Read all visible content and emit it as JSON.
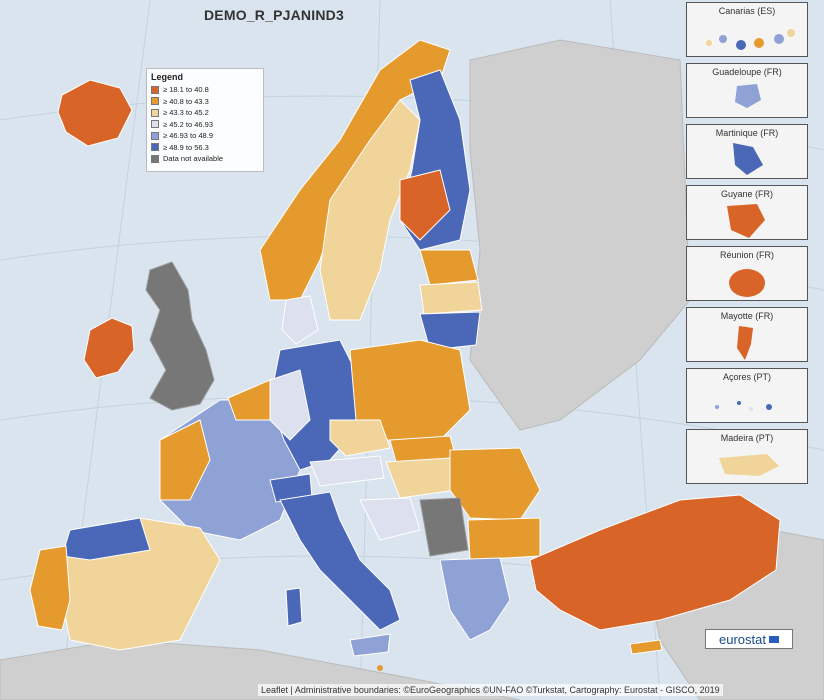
{
  "title": "DEMO_R_PJANIND3",
  "legend": {
    "title": "Legend",
    "items": [
      {
        "label": "≥ 18.1 to 40.8",
        "color": "#d86428"
      },
      {
        "label": "≥ 40.8 to 43.3",
        "color": "#e59a2e"
      },
      {
        "label": "≥ 43.3 to 45.2",
        "color": "#f0d49a"
      },
      {
        "label": "≥ 45.2 to 46.93",
        "color": "#dde0ef"
      },
      {
        "label": "≥ 46.93 to 48.9",
        "color": "#8fa2d6"
      },
      {
        "label": "≥ 48.9 to 56.3",
        "color": "#4a67b8"
      },
      {
        "label": "Data not available",
        "color": "#777777"
      }
    ]
  },
  "insets": [
    {
      "label": "Canarias (ES)"
    },
    {
      "label": "Guadeloupe (FR)"
    },
    {
      "label": "Martinique (FR)"
    },
    {
      "label": "Guyane (FR)"
    },
    {
      "label": "Réunion (FR)"
    },
    {
      "label": "Mayotte (FR)"
    },
    {
      "label": "Açores (PT)"
    },
    {
      "label": "Madeira (PT)"
    }
  ],
  "logo_text": "eurostat",
  "attribution": "Leaflet | Administrative boundaries: ©EuroGeographics ©UN-FAO ©Turkstat, Cartography: Eurostat - GISCO, 2019",
  "colors": {
    "sea": "#d9e4ee",
    "land_outside": "#cfcfcf"
  }
}
